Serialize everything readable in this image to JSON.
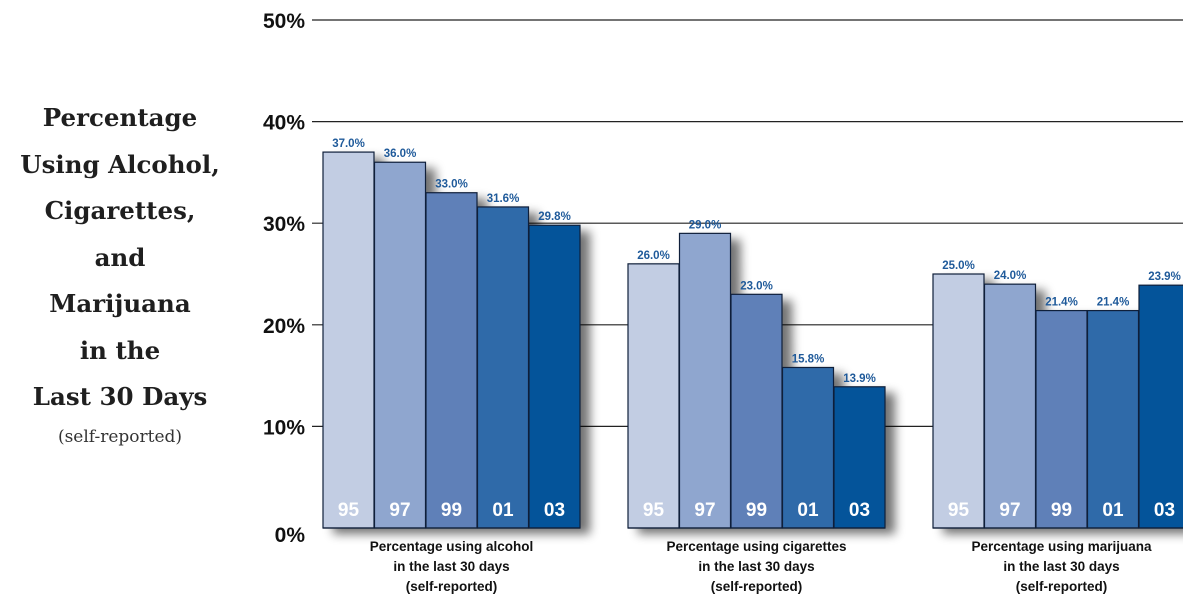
{
  "title_lines": [
    "Percentage",
    "Using Alcohol,",
    "Cigarettes,",
    "and",
    "Marijuana",
    "in the",
    "Last 30 Days"
  ],
  "subtitle": "(self-reported)",
  "chart_data": {
    "type": "bar",
    "y_ticks": [
      "0%",
      "10%",
      "20%",
      "30%",
      "40%",
      "50%"
    ],
    "ylim": [
      0,
      50
    ],
    "grid": true,
    "categories": [
      "95",
      "97",
      "99",
      "01",
      "03"
    ],
    "colors": [
      "#c2cde3",
      "#8fa6cf",
      "#5f80b8",
      "#2f6aa9",
      "#04549a"
    ],
    "groups": [
      {
        "caption": [
          "Percentage using alcohol",
          "in the last 30 days",
          "(self-reported)"
        ],
        "values": [
          37.0,
          36.0,
          33.0,
          31.6,
          29.8
        ],
        "labels": [
          "37.0%",
          "36.0%",
          "33.0%",
          "31.6%",
          "29.8%"
        ]
      },
      {
        "caption": [
          "Percentage using cigarettes",
          "in the last 30 days",
          "(self-reported)"
        ],
        "values": [
          26.0,
          29.0,
          23.0,
          15.8,
          13.9
        ],
        "labels": [
          "26.0%",
          "29.0%",
          "23.0%",
          "15.8%",
          "13.9%"
        ]
      },
      {
        "caption": [
          "Percentage using marijuana",
          "in the last 30 days",
          "(self-reported)"
        ],
        "values": [
          25.0,
          24.0,
          21.4,
          21.4,
          23.9
        ],
        "labels": [
          "25.0%",
          "24.0%",
          "21.4%",
          "21.4%",
          "23.9%"
        ]
      }
    ]
  }
}
